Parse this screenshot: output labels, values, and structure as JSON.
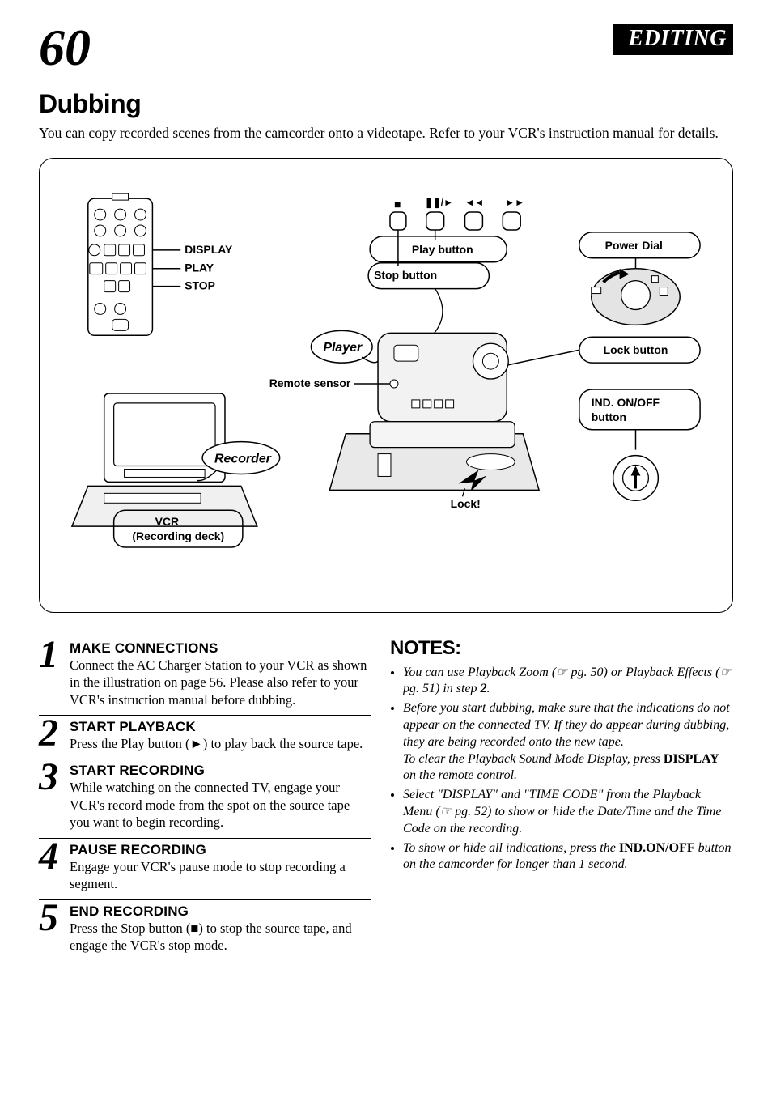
{
  "header": {
    "page_number": "60",
    "section": "EDITING"
  },
  "title": "Dubbing",
  "intro": "You can copy recorded scenes from the camcorder onto a videotape. Refer to your VCR's instruction manual for details.",
  "diagram": {
    "labels": {
      "display": "DISPLAY",
      "play": "PLAY",
      "stop": "STOP",
      "play_button": "Play button",
      "stop_button": "Stop button",
      "player": "Player",
      "remote_sensor": "Remote sensor",
      "recorder": "Recorder",
      "vcr_line1": "VCR",
      "vcr_line2": "(Recording deck)",
      "lock": "Lock!",
      "power_dial": "Power Dial",
      "lock_button": "Lock button",
      "ind_onoff_line1": "IND. ON/OFF",
      "ind_onoff_line2": "button",
      "pause_play_sym": "❚❚/►",
      "rew_sym": "◄◄",
      "ff_sym": "►►",
      "stop_sym": "■"
    },
    "colors": {
      "stroke": "#000000",
      "fill_light": "#ffffff",
      "fill_gray": "#d9d9d9"
    }
  },
  "steps": [
    {
      "num": "1",
      "title": "MAKE CONNECTIONS",
      "text": "Connect the AC Charger Station to your VCR as shown in the illustration on page 56. Please also refer to your VCR's instruction manual before dubbing."
    },
    {
      "num": "2",
      "title": "START PLAYBACK",
      "text": "Press the Play button (►) to play back the source tape."
    },
    {
      "num": "3",
      "title": "START RECORDING",
      "text": "While watching on the connected TV, engage your VCR's record mode from the spot on the source tape you want to begin recording."
    },
    {
      "num": "4",
      "title": "PAUSE RECORDING",
      "text": "Engage your VCR's pause mode to stop recording a segment."
    },
    {
      "num": "5",
      "title": "END RECORDING",
      "text": "Press the Stop button (■) to stop the source tape, and engage the VCR's stop mode."
    }
  ],
  "notes": {
    "title": "NOTES:",
    "items": [
      "You can use Playback Zoom (☞ pg. 50) or Playback Effects (☞ pg. 51) in step <b>2</b>.",
      "Before you start dubbing, make sure that the indications do not appear on the connected TV. If they do appear during dubbing, they are being recorded onto the new tape.<br>To clear the Playback Sound Mode Display, press <b class='bold-upright'>DISPLAY</b> on the remote control.",
      "Select \"DISPLAY\" and \"TIME CODE\" from the Playback Menu (☞ pg. 52) to show or hide the Date/Time and the Time Code on the recording.",
      "To show or hide all indications, press the <b class='bold-upright'>IND.ON/OFF</b> button on the camcorder for longer than 1 second."
    ]
  }
}
